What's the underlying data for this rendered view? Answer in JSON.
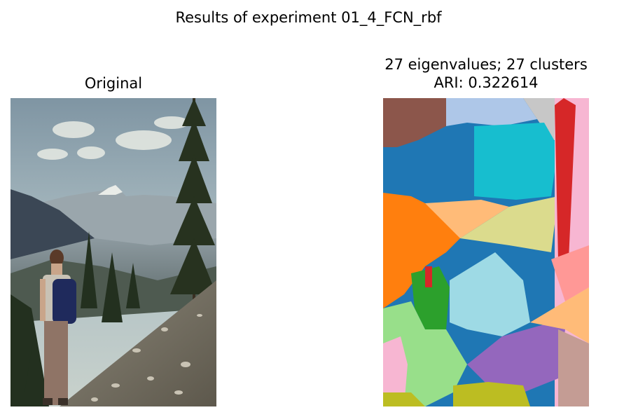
{
  "figure": {
    "suptitle": "Results of experiment 01_4_FCN_rbf"
  },
  "panels": [
    {
      "title": "Original"
    },
    {
      "title_line1": "27 eigenvalues; 27 clusters",
      "title_line2": "ARI: 0.322614",
      "eigenvalues": 27,
      "clusters": 27,
      "ari": 0.322614
    }
  ]
}
